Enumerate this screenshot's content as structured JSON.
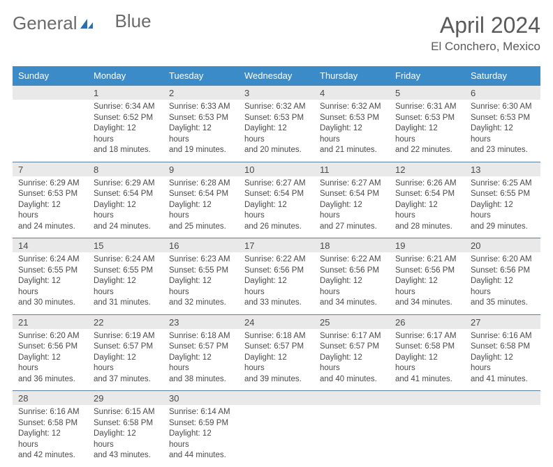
{
  "brand": {
    "word1": "General",
    "word2": "Blue"
  },
  "title": "April 2024",
  "location": "El Conchero, Mexico",
  "weekdays": [
    "Sunday",
    "Monday",
    "Tuesday",
    "Wednesday",
    "Thursday",
    "Friday",
    "Saturday"
  ],
  "colors": {
    "header_bar": "#3b8bc9",
    "daynum_bg": "#e9e9e9",
    "rule": "#5a7fa0",
    "text": "#4a4a4a",
    "logo_blue": "#2b6fb0"
  },
  "days": [
    null,
    {
      "n": "1",
      "sunrise": "6:34 AM",
      "sunset": "6:52 PM",
      "dl1": "12 hours",
      "dl2": "18 minutes."
    },
    {
      "n": "2",
      "sunrise": "6:33 AM",
      "sunset": "6:53 PM",
      "dl1": "12 hours",
      "dl2": "19 minutes."
    },
    {
      "n": "3",
      "sunrise": "6:32 AM",
      "sunset": "6:53 PM",
      "dl1": "12 hours",
      "dl2": "20 minutes."
    },
    {
      "n": "4",
      "sunrise": "6:32 AM",
      "sunset": "6:53 PM",
      "dl1": "12 hours",
      "dl2": "21 minutes."
    },
    {
      "n": "5",
      "sunrise": "6:31 AM",
      "sunset": "6:53 PM",
      "dl1": "12 hours",
      "dl2": "22 minutes."
    },
    {
      "n": "6",
      "sunrise": "6:30 AM",
      "sunset": "6:53 PM",
      "dl1": "12 hours",
      "dl2": "23 minutes."
    },
    {
      "n": "7",
      "sunrise": "6:29 AM",
      "sunset": "6:53 PM",
      "dl1": "12 hours",
      "dl2": "24 minutes."
    },
    {
      "n": "8",
      "sunrise": "6:29 AM",
      "sunset": "6:54 PM",
      "dl1": "12 hours",
      "dl2": "24 minutes."
    },
    {
      "n": "9",
      "sunrise": "6:28 AM",
      "sunset": "6:54 PM",
      "dl1": "12 hours",
      "dl2": "25 minutes."
    },
    {
      "n": "10",
      "sunrise": "6:27 AM",
      "sunset": "6:54 PM",
      "dl1": "12 hours",
      "dl2": "26 minutes."
    },
    {
      "n": "11",
      "sunrise": "6:27 AM",
      "sunset": "6:54 PM",
      "dl1": "12 hours",
      "dl2": "27 minutes."
    },
    {
      "n": "12",
      "sunrise": "6:26 AM",
      "sunset": "6:54 PM",
      "dl1": "12 hours",
      "dl2": "28 minutes."
    },
    {
      "n": "13",
      "sunrise": "6:25 AM",
      "sunset": "6:55 PM",
      "dl1": "12 hours",
      "dl2": "29 minutes."
    },
    {
      "n": "14",
      "sunrise": "6:24 AM",
      "sunset": "6:55 PM",
      "dl1": "12 hours",
      "dl2": "30 minutes."
    },
    {
      "n": "15",
      "sunrise": "6:24 AM",
      "sunset": "6:55 PM",
      "dl1": "12 hours",
      "dl2": "31 minutes."
    },
    {
      "n": "16",
      "sunrise": "6:23 AM",
      "sunset": "6:55 PM",
      "dl1": "12 hours",
      "dl2": "32 minutes."
    },
    {
      "n": "17",
      "sunrise": "6:22 AM",
      "sunset": "6:56 PM",
      "dl1": "12 hours",
      "dl2": "33 minutes."
    },
    {
      "n": "18",
      "sunrise": "6:22 AM",
      "sunset": "6:56 PM",
      "dl1": "12 hours",
      "dl2": "34 minutes."
    },
    {
      "n": "19",
      "sunrise": "6:21 AM",
      "sunset": "6:56 PM",
      "dl1": "12 hours",
      "dl2": "34 minutes."
    },
    {
      "n": "20",
      "sunrise": "6:20 AM",
      "sunset": "6:56 PM",
      "dl1": "12 hours",
      "dl2": "35 minutes."
    },
    {
      "n": "21",
      "sunrise": "6:20 AM",
      "sunset": "6:56 PM",
      "dl1": "12 hours",
      "dl2": "36 minutes."
    },
    {
      "n": "22",
      "sunrise": "6:19 AM",
      "sunset": "6:57 PM",
      "dl1": "12 hours",
      "dl2": "37 minutes."
    },
    {
      "n": "23",
      "sunrise": "6:18 AM",
      "sunset": "6:57 PM",
      "dl1": "12 hours",
      "dl2": "38 minutes."
    },
    {
      "n": "24",
      "sunrise": "6:18 AM",
      "sunset": "6:57 PM",
      "dl1": "12 hours",
      "dl2": "39 minutes."
    },
    {
      "n": "25",
      "sunrise": "6:17 AM",
      "sunset": "6:57 PM",
      "dl1": "12 hours",
      "dl2": "40 minutes."
    },
    {
      "n": "26",
      "sunrise": "6:17 AM",
      "sunset": "6:58 PM",
      "dl1": "12 hours",
      "dl2": "41 minutes."
    },
    {
      "n": "27",
      "sunrise": "6:16 AM",
      "sunset": "6:58 PM",
      "dl1": "12 hours",
      "dl2": "41 minutes."
    },
    {
      "n": "28",
      "sunrise": "6:16 AM",
      "sunset": "6:58 PM",
      "dl1": "12 hours",
      "dl2": "42 minutes."
    },
    {
      "n": "29",
      "sunrise": "6:15 AM",
      "sunset": "6:58 PM",
      "dl1": "12 hours",
      "dl2": "43 minutes."
    },
    {
      "n": "30",
      "sunrise": "6:14 AM",
      "sunset": "6:59 PM",
      "dl1": "12 hours",
      "dl2": "44 minutes."
    },
    null,
    null,
    null,
    null
  ],
  "labels": {
    "sunrise_prefix": "Sunrise: ",
    "sunset_prefix": "Sunset: ",
    "daylight_prefix": "Daylight: ",
    "and": "and "
  }
}
